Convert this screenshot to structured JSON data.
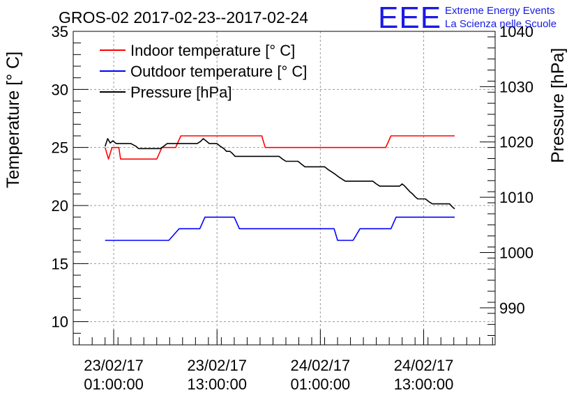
{
  "chart_data": {
    "type": "line",
    "title": "GROS-02 2017-02-23--2017-02-24",
    "logo": {
      "text": "EEE",
      "line1": "Extreme Energy Events",
      "line2": "La Scienza nelle Scuole",
      "color": "#1a1ae6"
    },
    "ylabel": "Temperature [° C]",
    "y2label": "Pressure [hPa]",
    "ylim": [
      8,
      35
    ],
    "y2lim": [
      983.3,
      1040
    ],
    "yticks": [
      "10",
      "15",
      "20",
      "25",
      "30",
      "35"
    ],
    "y2ticks": [
      "990",
      "1000",
      "1010",
      "1020",
      "1030",
      "1040"
    ],
    "xlim": [
      -3.7,
      45.3
    ],
    "xticks": [
      {
        "x": 1,
        "line1": "23/02/17",
        "line2": "01:00:00"
      },
      {
        "x": 13,
        "line1": "23/02/17",
        "line2": "13:00:00"
      },
      {
        "x": 25,
        "line1": "24/02/17",
        "line2": "01:00:00"
      },
      {
        "x": 37,
        "line1": "24/02/17",
        "line2": "13:00:00"
      }
    ],
    "x_unit_note": "hours since 23/02/17 00:00:00",
    "grid": true,
    "legend_position": "top-left",
    "series": [
      {
        "name": "Indoor temperature [° C]",
        "color": "#ff0000",
        "axis": "left",
        "points": [
          [
            0,
            25
          ],
          [
            0.4,
            24
          ],
          [
            0.8,
            25
          ],
          [
            1.6,
            25
          ],
          [
            1.8,
            24
          ],
          [
            6,
            24
          ],
          [
            6.6,
            25
          ],
          [
            8.2,
            25
          ],
          [
            8.8,
            26
          ],
          [
            18.2,
            26
          ],
          [
            18.6,
            25
          ],
          [
            32.6,
            25
          ],
          [
            33.2,
            26
          ],
          [
            40.6,
            26
          ]
        ]
      },
      {
        "name": "Outdoor temperature [° C]",
        "color": "#0000ff",
        "axis": "left",
        "points": [
          [
            0,
            17
          ],
          [
            7.4,
            17
          ],
          [
            8.6,
            18
          ],
          [
            11,
            18
          ],
          [
            11.6,
            19
          ],
          [
            15,
            19
          ],
          [
            15.6,
            18
          ],
          [
            26.6,
            18
          ],
          [
            27,
            17
          ],
          [
            28.8,
            17
          ],
          [
            29.6,
            18
          ],
          [
            33.2,
            18
          ],
          [
            33.8,
            19
          ],
          [
            40.6,
            19
          ]
        ]
      },
      {
        "name": "Pressure [hPa]",
        "color": "#000000",
        "axis": "right",
        "points": [
          [
            0,
            1019.2
          ],
          [
            0.3,
            1020.6
          ],
          [
            0.6,
            1019.8
          ],
          [
            0.9,
            1020.2
          ],
          [
            1.3,
            1019.7
          ],
          [
            3,
            1019.7
          ],
          [
            3.6,
            1019.2
          ],
          [
            3.9,
            1018.8
          ],
          [
            6.4,
            1018.8
          ],
          [
            6.8,
            1019.2
          ],
          [
            7.2,
            1019.7
          ],
          [
            10.7,
            1019.7
          ],
          [
            11.1,
            1020.1
          ],
          [
            11.4,
            1020.6
          ],
          [
            11.8,
            1020.1
          ],
          [
            12.1,
            1019.7
          ],
          [
            13,
            1019.7
          ],
          [
            13.4,
            1019.2
          ],
          [
            13.8,
            1018.8
          ],
          [
            14.1,
            1018.3
          ],
          [
            14.5,
            1018.3
          ],
          [
            14.8,
            1017.9
          ],
          [
            15.1,
            1017.4
          ],
          [
            20.2,
            1017.4
          ],
          [
            20.6,
            1016.9
          ],
          [
            21,
            1016.5
          ],
          [
            22.4,
            1016.5
          ],
          [
            22.8,
            1016
          ],
          [
            23.2,
            1015.5
          ],
          [
            25.5,
            1015.5
          ],
          [
            25.9,
            1015
          ],
          [
            26.3,
            1014.6
          ],
          [
            26.7,
            1014.2
          ],
          [
            27.1,
            1013.7
          ],
          [
            27.5,
            1013.3
          ],
          [
            27.9,
            1012.9
          ],
          [
            31.1,
            1012.9
          ],
          [
            31.5,
            1012.4
          ],
          [
            31.9,
            1012
          ],
          [
            34.2,
            1012
          ],
          [
            34.5,
            1012.4
          ],
          [
            34.8,
            1012
          ],
          [
            35.1,
            1011.5
          ],
          [
            35.4,
            1011
          ],
          [
            35.7,
            1010.6
          ],
          [
            36,
            1010.1
          ],
          [
            36.3,
            1009.7
          ],
          [
            37.2,
            1009.7
          ],
          [
            37.6,
            1009.2
          ],
          [
            38,
            1008.8
          ],
          [
            40,
            1008.8
          ],
          [
            40.3,
            1008.3
          ],
          [
            40.6,
            1007.9
          ]
        ]
      }
    ]
  }
}
